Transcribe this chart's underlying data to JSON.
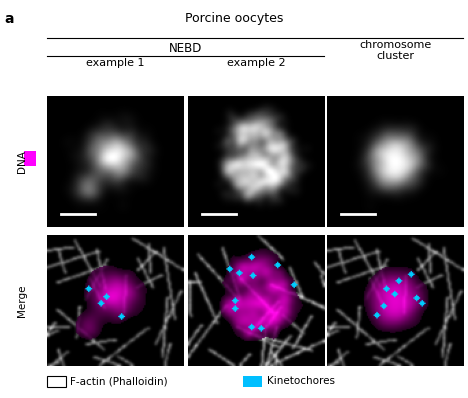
{
  "title": "Porcine oocytes",
  "panel_label": "a",
  "col_headers": [
    "example 1",
    "example 2",
    "chromosome\ncluster"
  ],
  "group_header": "NEBD",
  "row_labels": [
    "DNA",
    "Merge"
  ],
  "row_label_dna": "DNA",
  "row_label_merge": "Merge",
  "dna_color_swatch": "#ff00ff",
  "legend_items": [
    {
      "label": "F-actin (Phalloidin)",
      "color": "#ffffff",
      "shape": "square"
    },
    {
      "label": "Kinetochores",
      "color": "#00bfff",
      "shape": "square"
    }
  ],
  "background_color": "#ffffff",
  "image_bg": "#000000",
  "scale_bar_color": "#ffffff",
  "title_fontsize": 9,
  "header_fontsize": 8.5,
  "col_label_fontsize": 8,
  "row_label_fontsize": 7.5,
  "legend_fontsize": 7.5
}
